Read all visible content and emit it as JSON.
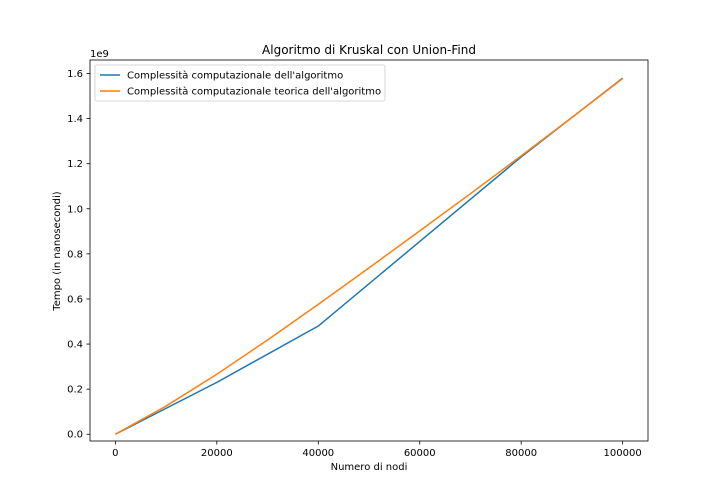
{
  "chart_data": {
    "type": "line",
    "title": "Algoritmo di Kruskal con Union-Find",
    "xlabel": "Numero di nodi",
    "ylabel": "Tempo (in nanosecondi)",
    "y_offset_label": "1e9",
    "xlim": [
      -5000,
      105000
    ],
    "ylim": [
      -0.03,
      1.66
    ],
    "x_ticks": [
      0,
      20000,
      40000,
      60000,
      80000,
      100000
    ],
    "x_tick_labels": [
      "0",
      "20000",
      "40000",
      "60000",
      "80000",
      "100000"
    ],
    "y_ticks": [
      0.0,
      0.2,
      0.4,
      0.6,
      0.8,
      1.0,
      1.2,
      1.4,
      1.6
    ],
    "y_tick_labels": [
      "0.0",
      "0.2",
      "0.4",
      "0.6",
      "0.8",
      "1.0",
      "1.2",
      "1.4",
      "1.6"
    ],
    "grid": false,
    "legend_position": "top-left",
    "series": [
      {
        "name": "Complessità computazionale dell'algoritmo",
        "color": "#1f77b4",
        "x": [
          0,
          20000,
          40000,
          80000,
          100000
        ],
        "y": [
          0.0,
          0.23,
          0.48,
          1.23,
          1.58
        ]
      },
      {
        "name": "Complessità computazionale teorica dell'algoritmo",
        "color": "#ff7f0e",
        "x": [
          0,
          10000,
          20000,
          30000,
          40000,
          50000,
          60000,
          70000,
          80000,
          90000,
          100000
        ],
        "y": [
          0.0,
          0.125,
          0.266,
          0.418,
          0.576,
          0.738,
          0.902,
          1.067,
          1.235,
          1.405,
          1.578
        ]
      }
    ]
  }
}
